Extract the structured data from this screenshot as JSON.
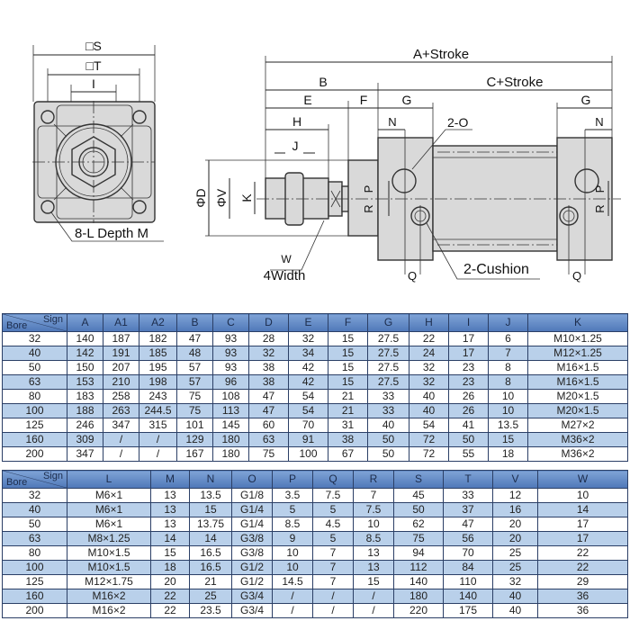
{
  "drawing": {
    "front_view": {
      "s_label": "□S",
      "t_label": "□T",
      "i_label": "I",
      "mount_label": "8-L Depth M"
    },
    "side_view": {
      "a_stroke": "A+Stroke",
      "c_stroke": "C+Stroke",
      "b": "B",
      "e": "E",
      "f": "F",
      "g_left": "G",
      "g_right": "G",
      "h": "H",
      "j": "J",
      "n_left": "N",
      "n_right": "N",
      "port_label": "2-O",
      "cushion_label": "2-Cushion",
      "d": "ΦD",
      "v": "ΦV",
      "k": "K",
      "w": "W",
      "width_label": "4Width",
      "r_left": "R",
      "p_left": "P",
      "r_right": "R",
      "p_right": "P",
      "q_left": "Q",
      "q_right": "Q"
    }
  },
  "table1": {
    "corner_sign": "Sign",
    "corner_bore": "Bore",
    "headers": [
      "A",
      "A1",
      "A2",
      "B",
      "C",
      "D",
      "E",
      "F",
      "G",
      "H",
      "I",
      "J",
      "K"
    ],
    "rows": [
      [
        "32",
        "140",
        "187",
        "182",
        "47",
        "93",
        "28",
        "32",
        "15",
        "27.5",
        "22",
        "17",
        "6",
        "M10×1.25"
      ],
      [
        "40",
        "142",
        "191",
        "185",
        "48",
        "93",
        "32",
        "34",
        "15",
        "27.5",
        "24",
        "17",
        "7",
        "M12×1.25"
      ],
      [
        "50",
        "150",
        "207",
        "195",
        "57",
        "93",
        "38",
        "42",
        "15",
        "27.5",
        "32",
        "23",
        "8",
        "M16×1.5"
      ],
      [
        "63",
        "153",
        "210",
        "198",
        "57",
        "96",
        "38",
        "42",
        "15",
        "27.5",
        "32",
        "23",
        "8",
        "M16×1.5"
      ],
      [
        "80",
        "183",
        "258",
        "243",
        "75",
        "108",
        "47",
        "54",
        "21",
        "33",
        "40",
        "26",
        "10",
        "M20×1.5"
      ],
      [
        "100",
        "188",
        "263",
        "244.5",
        "75",
        "113",
        "47",
        "54",
        "21",
        "33",
        "40",
        "26",
        "10",
        "M20×1.5"
      ],
      [
        "125",
        "246",
        "347",
        "315",
        "101",
        "145",
        "60",
        "70",
        "31",
        "40",
        "54",
        "41",
        "13.5",
        "M27×2"
      ],
      [
        "160",
        "309",
        "/",
        "/",
        "129",
        "180",
        "63",
        "91",
        "38",
        "50",
        "72",
        "50",
        "15",
        "M36×2"
      ],
      [
        "200",
        "347",
        "/",
        "/",
        "167",
        "180",
        "75",
        "100",
        "67",
        "50",
        "72",
        "55",
        "18",
        "M36×2"
      ]
    ]
  },
  "table2": {
    "corner_sign": "Sign",
    "corner_bore": "Bore",
    "headers": [
      "L",
      "M",
      "N",
      "O",
      "P",
      "Q",
      "R",
      "S",
      "T",
      "V",
      "W"
    ],
    "rows": [
      [
        "32",
        "M6×1",
        "13",
        "13.5",
        "G1/8",
        "3.5",
        "7.5",
        "7",
        "45",
        "33",
        "12",
        "10"
      ],
      [
        "40",
        "M6×1",
        "13",
        "15",
        "G1/4",
        "5",
        "5",
        "7.5",
        "50",
        "37",
        "16",
        "14"
      ],
      [
        "50",
        "M6×1",
        "13",
        "13.75",
        "G1/4",
        "8.5",
        "4.5",
        "10",
        "62",
        "47",
        "20",
        "17"
      ],
      [
        "63",
        "M8×1.25",
        "14",
        "14",
        "G3/8",
        "9",
        "5",
        "8.5",
        "75",
        "56",
        "20",
        "17"
      ],
      [
        "80",
        "M10×1.5",
        "15",
        "16.5",
        "G3/8",
        "10",
        "7",
        "13",
        "94",
        "70",
        "25",
        "22"
      ],
      [
        "100",
        "M10×1.5",
        "18",
        "16.5",
        "G1/2",
        "10",
        "7",
        "13",
        "112",
        "84",
        "25",
        "22"
      ],
      [
        "125",
        "M12×1.75",
        "20",
        "21",
        "G1/2",
        "14.5",
        "7",
        "15",
        "140",
        "110",
        "32",
        "29"
      ],
      [
        "160",
        "M16×2",
        "22",
        "25",
        "G3/4",
        "/",
        "/",
        "/",
        "180",
        "140",
        "40",
        "36"
      ],
      [
        "200",
        "M16×2",
        "22",
        "23.5",
        "G3/4",
        "/",
        "/",
        "/",
        "220",
        "175",
        "40",
        "36"
      ]
    ]
  },
  "colors": {
    "header": "#5a83c0",
    "alt_row": "#b9d0ea",
    "border": "#2b3f66"
  }
}
